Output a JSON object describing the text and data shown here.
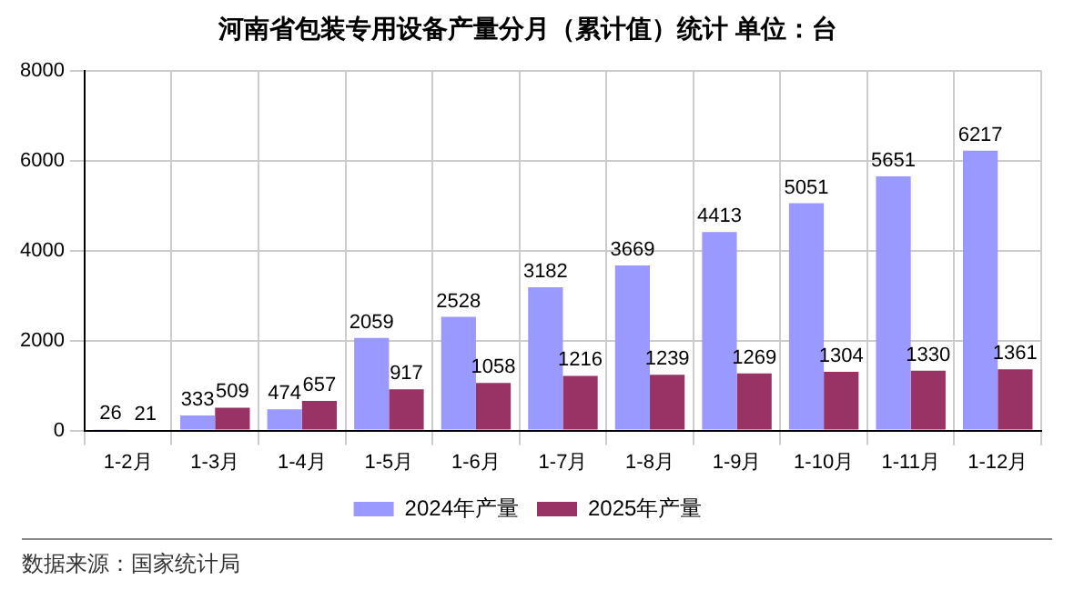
{
  "chart_data": {
    "type": "bar",
    "title": "河南省包装专用设备产量分月（累计值）统计 单位：台",
    "categories": [
      "1-2月",
      "1-3月",
      "1-4月",
      "1-5月",
      "1-6月",
      "1-7月",
      "1-8月",
      "1-9月",
      "1-10月",
      "1-11月",
      "1-12月"
    ],
    "series": [
      {
        "name": "2024年产量",
        "color": "#9999ff",
        "values": [
          26,
          333,
          474,
          2059,
          2528,
          3182,
          3669,
          4413,
          5051,
          5651,
          6217
        ]
      },
      {
        "name": "2025年产量",
        "color": "#993366",
        "values": [
          21,
          509,
          657,
          917,
          1058,
          1216,
          1239,
          1269,
          1304,
          1330,
          1361
        ]
      }
    ],
    "ylim": [
      0,
      8000
    ],
    "yticks": [
      0,
      2000,
      4000,
      6000,
      8000
    ],
    "grid": true,
    "legend": "bottom",
    "data_labels": true,
    "annotations": [
      "数据来源：国家统计局"
    ]
  }
}
